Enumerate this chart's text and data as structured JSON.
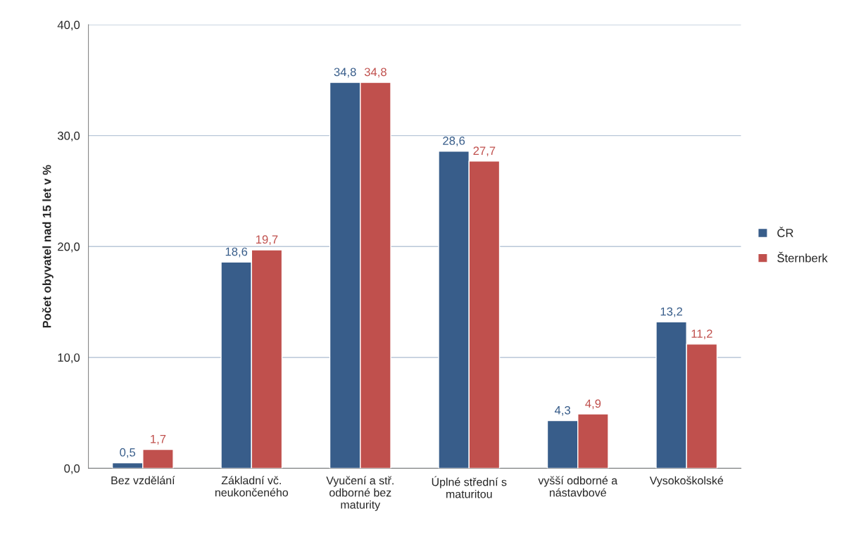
{
  "chart_data": {
    "type": "bar",
    "ylabel": "Počet obyvatel nad 15 let v %",
    "categories": [
      "Bez vzdělání",
      "Základní vč. neukončeného",
      "Vyučení a stř. odborné bez maturity",
      "Úplné střední s maturitou",
      "vyšší odborné a nástavbové",
      "Vysokoškolské"
    ],
    "series": [
      {
        "name": "ČR",
        "color": "#385d8a",
        "values": [
          0.5,
          18.6,
          34.8,
          28.6,
          4.3,
          13.2
        ],
        "value_labels": [
          "0,5",
          "18,6",
          "34,8",
          "28,6",
          "4,3",
          "13,2"
        ]
      },
      {
        "name": "Šternberk",
        "color": "#c0504d",
        "values": [
          1.7,
          19.7,
          34.8,
          27.7,
          4.9,
          11.2
        ],
        "value_labels": [
          "1,7",
          "19,7",
          "34,8",
          "27,7",
          "4,9",
          "11,2"
        ]
      }
    ],
    "ylim": [
      0,
      40
    ],
    "yticks": [
      {
        "value": 0,
        "label": "0,0"
      },
      {
        "value": 10,
        "label": "10,0"
      },
      {
        "value": 20,
        "label": "20,0"
      },
      {
        "value": 30,
        "label": "30,0"
      },
      {
        "value": 40,
        "label": "40,0"
      }
    ],
    "grid": "y",
    "legend": "right"
  }
}
